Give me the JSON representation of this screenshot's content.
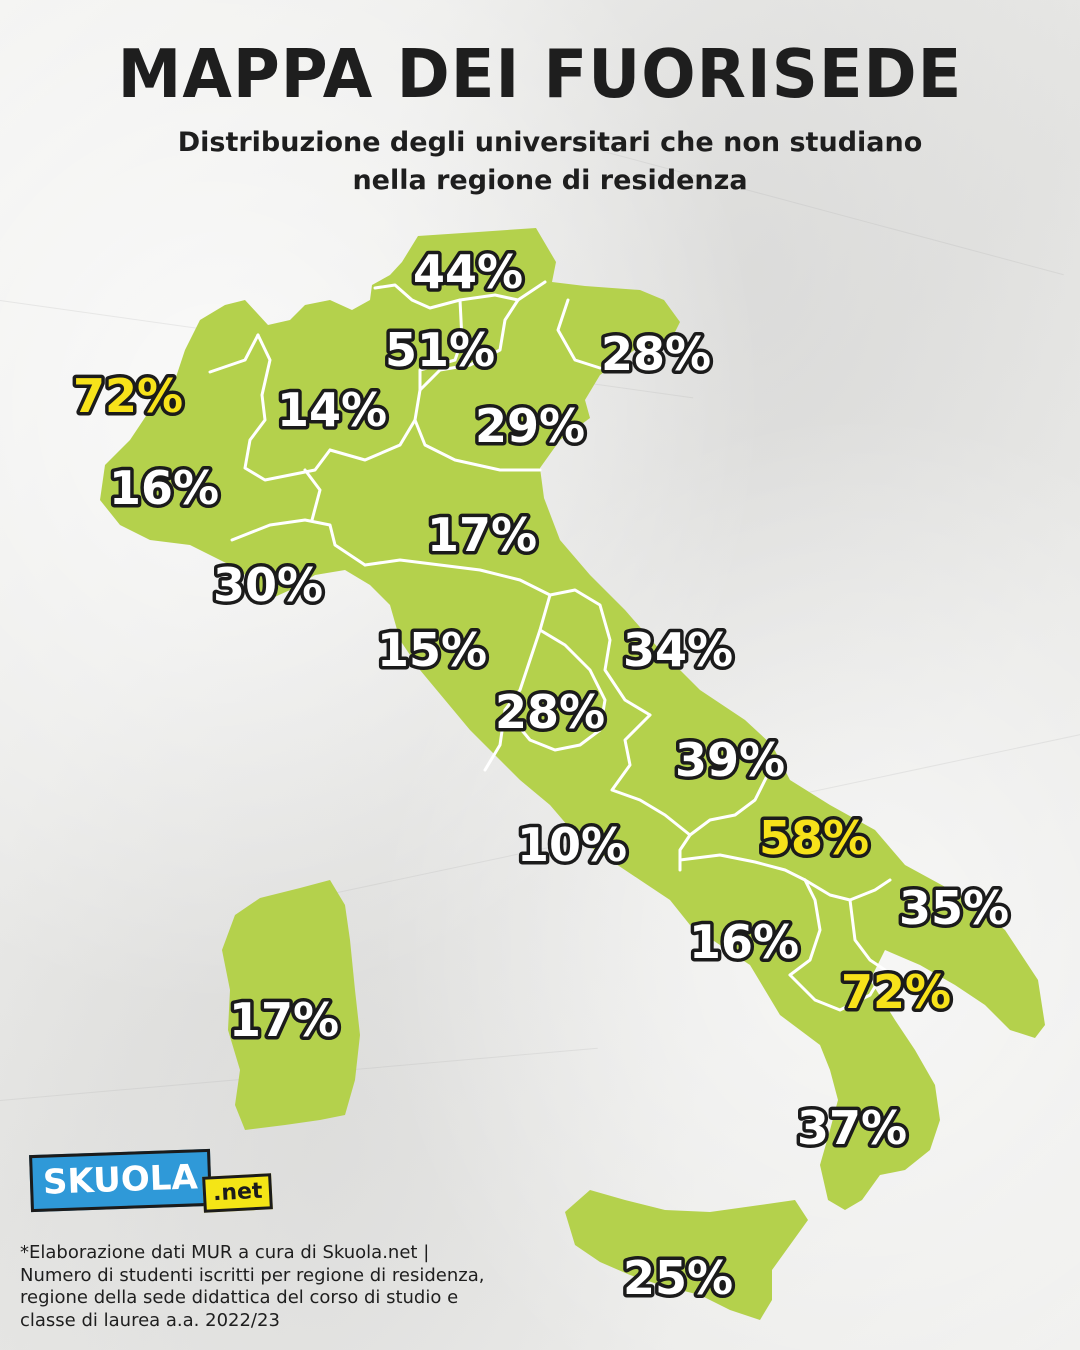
{
  "header": {
    "title": "MAPPA DEI FUORISEDE",
    "subtitle_line1": "Distribuzione degli universitari che non studiano",
    "subtitle_line2": "nella regione di residenza"
  },
  "colors": {
    "land": "#b4d14c",
    "border": "#ffffff",
    "label_text": "#ffffff",
    "label_highlight": "#f7e21a",
    "label_outline": "#1b1b1b",
    "background": "#eeeeec"
  },
  "regions": [
    {
      "id": "trentino-alto-adige",
      "label": "44%",
      "highlight": false
    },
    {
      "id": "lombardia-nord",
      "label": "51%",
      "highlight": false
    },
    {
      "id": "friuli-venezia-giulia",
      "label": "28%",
      "highlight": false
    },
    {
      "id": "valle-d-aosta",
      "label": "72%",
      "highlight": true
    },
    {
      "id": "lombardia",
      "label": "14%",
      "highlight": false
    },
    {
      "id": "veneto",
      "label": "29%",
      "highlight": false
    },
    {
      "id": "piemonte",
      "label": "16%",
      "highlight": false
    },
    {
      "id": "emilia-romagna",
      "label": "17%",
      "highlight": false
    },
    {
      "id": "liguria",
      "label": "30%",
      "highlight": false
    },
    {
      "id": "toscana",
      "label": "15%",
      "highlight": false
    },
    {
      "id": "marche",
      "label": "34%",
      "highlight": false
    },
    {
      "id": "umbria",
      "label": "28%",
      "highlight": false
    },
    {
      "id": "abruzzo",
      "label": "39%",
      "highlight": false
    },
    {
      "id": "lazio",
      "label": "10%",
      "highlight": false
    },
    {
      "id": "molise",
      "label": "58%",
      "highlight": true
    },
    {
      "id": "puglia",
      "label": "35%",
      "highlight": false
    },
    {
      "id": "campania",
      "label": "16%",
      "highlight": false
    },
    {
      "id": "basilicata",
      "label": "72%",
      "highlight": true
    },
    {
      "id": "sardegna",
      "label": "17%",
      "highlight": false
    },
    {
      "id": "calabria",
      "label": "37%",
      "highlight": false
    },
    {
      "id": "sicilia",
      "label": "25%",
      "highlight": false
    }
  ],
  "logo": {
    "brand": "SKUOLA",
    "suffix": ".net"
  },
  "footnote": {
    "line1": "*Elaborazione dati MUR a cura di Skuola.net  |",
    "line2": "Numero di studenti iscritti per regione di residenza,",
    "line3": "regione della sede didattica del corso di studio e",
    "line4": "classe di laurea a.a. 2022/23"
  }
}
